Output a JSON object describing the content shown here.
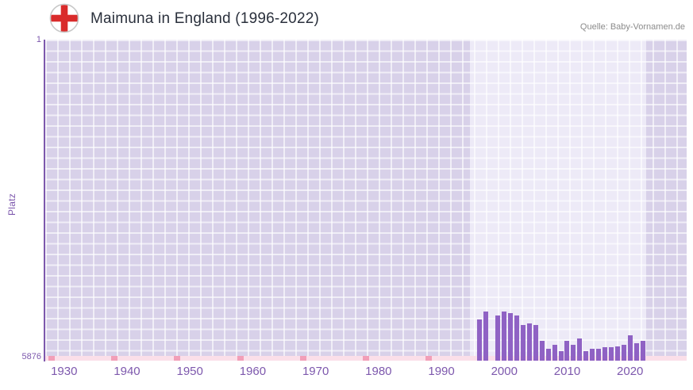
{
  "header": {
    "title": "Maimuna in England (1996-2022)",
    "source": "Quelle: Baby-Vornamen.de"
  },
  "chart_data": {
    "type": "bar",
    "title": "Maimuna in England (1996-2022)",
    "ylabel": "Platz",
    "y_axis": {
      "top_label": "1",
      "bottom_label": "5876",
      "min": 1,
      "max": 5876,
      "inverted": true
    },
    "x_axis": {
      "min": 1927,
      "max": 2029,
      "ticks": [
        1930,
        1940,
        1950,
        1960,
        1970,
        1980,
        1990,
        2000,
        2010,
        2020
      ]
    },
    "highlight_range": {
      "from": 1994.5,
      "to": 2022.5
    },
    "axis_marks_years": [
      1928,
      1938,
      1948,
      1958,
      1968,
      1978,
      1988
    ],
    "series": [
      {
        "name": "Platz",
        "points": [
          {
            "year": 1996,
            "rank": 5120
          },
          {
            "year": 1997,
            "rank": 4975
          },
          {
            "year": 1998,
            "rank": null
          },
          {
            "year": 1999,
            "rank": 5050
          },
          {
            "year": 2000,
            "rank": 4980
          },
          {
            "year": 2001,
            "rank": 5010
          },
          {
            "year": 2002,
            "rank": 5050
          },
          {
            "year": 2003,
            "rank": 5230
          },
          {
            "year": 2004,
            "rank": 5200
          },
          {
            "year": 2005,
            "rank": 5230
          },
          {
            "year": 2006,
            "rank": 5520
          },
          {
            "year": 2007,
            "rank": 5660
          },
          {
            "year": 2008,
            "rank": 5590
          },
          {
            "year": 2009,
            "rank": 5700
          },
          {
            "year": 2010,
            "rank": 5515
          },
          {
            "year": 2011,
            "rank": 5590
          },
          {
            "year": 2012,
            "rank": 5470
          },
          {
            "year": 2013,
            "rank": 5700
          },
          {
            "year": 2014,
            "rank": 5660
          },
          {
            "year": 2015,
            "rank": 5660
          },
          {
            "year": 2016,
            "rank": 5630
          },
          {
            "year": 2017,
            "rank": 5630
          },
          {
            "year": 2018,
            "rank": 5615
          },
          {
            "year": 2019,
            "rank": 5590
          },
          {
            "year": 2020,
            "rank": 5410
          },
          {
            "year": 2021,
            "rank": 5560
          },
          {
            "year": 2022,
            "rank": 5515
          }
        ]
      }
    ],
    "colors": {
      "bar": "#8f62c4",
      "axis_accent": "#7d58ad",
      "plot_bg": "#d8d1e9",
      "highlight_bg": "#edeaf7",
      "strip_bg": "#fbdfe9",
      "strip_mark": "#f29fb8",
      "title_text": "#2a303c",
      "flag_red": "#d92b2b"
    }
  }
}
